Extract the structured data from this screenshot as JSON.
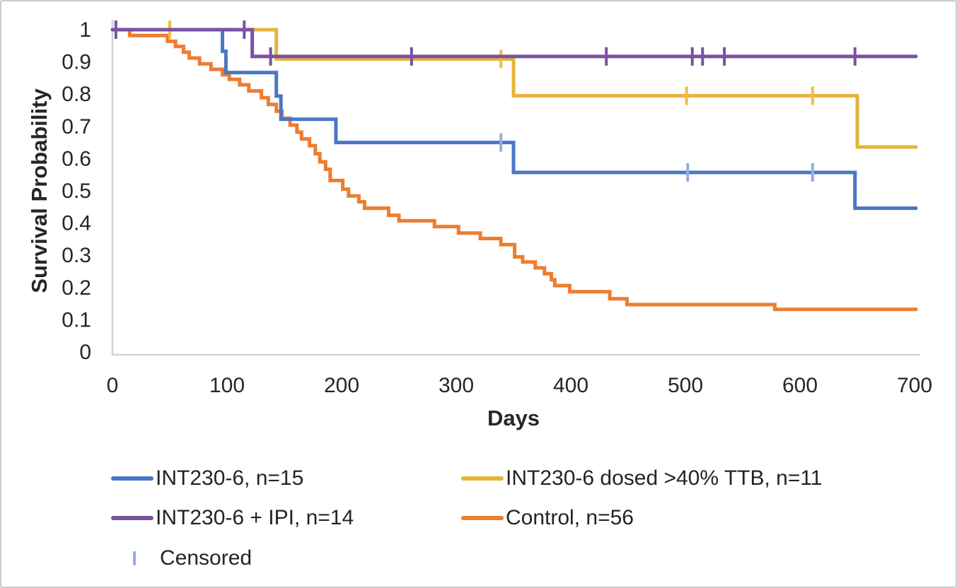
{
  "chart_data": {
    "type": "line",
    "subtype": "kaplan_meier_step",
    "title": "",
    "xlabel": "Days",
    "ylabel": "Survival Probability",
    "xlim": [
      0,
      700
    ],
    "ylim": [
      0,
      1
    ],
    "x_ticks": [
      0,
      100,
      200,
      300,
      400,
      500,
      600,
      700
    ],
    "y_ticks": [
      {
        "v": 1.0,
        "label": "1"
      },
      {
        "v": 0.9,
        "label": "0.9"
      },
      {
        "v": 0.8,
        "label": "0.8"
      },
      {
        "v": 0.7,
        "label": "0.7"
      },
      {
        "v": 0.6,
        "label": "0.6"
      },
      {
        "v": 0.5,
        "label": "0.5"
      },
      {
        "v": 0.4,
        "label": "0.4"
      },
      {
        "v": 0.3,
        "label": "0.3"
      },
      {
        "v": 0.2,
        "label": "0.2"
      },
      {
        "v": 0.1,
        "label": "0.1"
      },
      {
        "v": 0.0,
        "label": "0"
      }
    ],
    "grid": false,
    "legend_position": "bottom",
    "axis_color": "#d2d2d2",
    "text_color": "#262626",
    "censored_label": "Censored",
    "censored_marker_color": "#8fb0e0",
    "series": [
      {
        "id": "control",
        "label": "Control, n=56",
        "n": 56,
        "color": "#ed7d31",
        "censor_color": "#ed7d31",
        "steps": [
          [
            0,
            1.0
          ],
          [
            15,
            0.982
          ],
          [
            48,
            0.964
          ],
          [
            55,
            0.948
          ],
          [
            62,
            0.93
          ],
          [
            67,
            0.912
          ],
          [
            76,
            0.894
          ],
          [
            86,
            0.877
          ],
          [
            96,
            0.86
          ],
          [
            102,
            0.846
          ],
          [
            111,
            0.829
          ],
          [
            119,
            0.81
          ],
          [
            130,
            0.789
          ],
          [
            136,
            0.768
          ],
          [
            143,
            0.747
          ],
          [
            148,
            0.725
          ],
          [
            155,
            0.704
          ],
          [
            161,
            0.682
          ],
          [
            165,
            0.661
          ],
          [
            172,
            0.64
          ],
          [
            177,
            0.615
          ],
          [
            181,
            0.59
          ],
          [
            186,
            0.567
          ],
          [
            190,
            0.532
          ],
          [
            201,
            0.505
          ],
          [
            206,
            0.484
          ],
          [
            215,
            0.466
          ],
          [
            220,
            0.446
          ],
          [
            241,
            0.424
          ],
          [
            250,
            0.407
          ],
          [
            281,
            0.389
          ],
          [
            302,
            0.369
          ],
          [
            321,
            0.352
          ],
          [
            339,
            0.333
          ],
          [
            351,
            0.295
          ],
          [
            358,
            0.279
          ],
          [
            369,
            0.261
          ],
          [
            377,
            0.243
          ],
          [
            383,
            0.224
          ],
          [
            386,
            0.206
          ],
          [
            399,
            0.187
          ],
          [
            434,
            0.165
          ],
          [
            449,
            0.147
          ],
          [
            578,
            0.132
          ]
        ],
        "censored": []
      },
      {
        "id": "int230-6",
        "label": "INT230-6, n=15",
        "n": 15,
        "color": "#4a77c4",
        "censor_color": "#8fb0e0",
        "steps": [
          [
            0,
            1.0
          ],
          [
            96,
            0.933
          ],
          [
            99,
            0.867
          ],
          [
            143,
            0.794
          ],
          [
            147,
            0.722
          ],
          [
            195,
            0.65
          ],
          [
            350,
            0.557
          ],
          [
            648,
            0.446
          ]
        ],
        "censored": [
          [
            339,
            0.65
          ],
          [
            502,
            0.557
          ],
          [
            611,
            0.557
          ]
        ]
      },
      {
        "id": "int230-6-ttb",
        "label": "INT230-6 dosed >40% TTB, n=11",
        "n": 11,
        "color": "#e7b43a",
        "censor_color": "#f0bd3e",
        "steps": [
          [
            0,
            1.0
          ],
          [
            143,
            0.909
          ],
          [
            350,
            0.795
          ],
          [
            650,
            0.636
          ]
        ],
        "censored": [
          [
            50,
            1.0
          ],
          [
            339,
            0.909
          ],
          [
            501,
            0.795
          ],
          [
            611,
            0.795
          ]
        ]
      },
      {
        "id": "int230-6-ipi",
        "label": "INT230-6 + IPI, n=14",
        "n": 14,
        "color": "#7952a1",
        "censor_color": "#7952a1",
        "steps": [
          [
            0,
            1.0
          ],
          [
            122,
            0.917
          ]
        ],
        "censored": [
          [
            3,
            1.0
          ],
          [
            115,
            1.0
          ],
          [
            138,
            0.917
          ],
          [
            261,
            0.917
          ],
          [
            431,
            0.917
          ],
          [
            506,
            0.917
          ],
          [
            515,
            0.917
          ],
          [
            534,
            0.917
          ],
          [
            648,
            0.917
          ]
        ]
      }
    ]
  }
}
